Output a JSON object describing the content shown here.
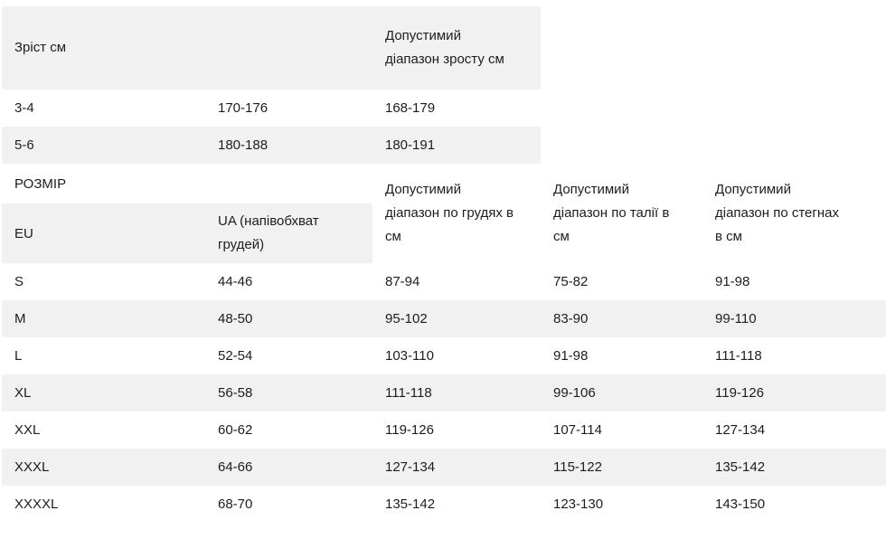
{
  "theme": {
    "stripe_color": "#f1f1f1",
    "text_color": "#1d1d1f",
    "background_color": "#ffffff"
  },
  "height_table": {
    "headers": [
      "Зріст см",
      "",
      "Допустимий діапазон зросту см"
    ],
    "rows": [
      [
        "3-4",
        "170-176",
        "168-179"
      ],
      [
        "5-6",
        "180-188",
        "180-191"
      ]
    ]
  },
  "size_table": {
    "section_label": "РОЗМІР",
    "headers": [
      "EU",
      "UA (напівобхват грудей)",
      "Допустимий діапазон по грудях в см",
      "Допустимий діапазон по талії в см",
      "Допустимий діапазон по стегнах в см"
    ],
    "rows": [
      [
        "S",
        "44-46",
        "87-94",
        "75-82",
        "91-98"
      ],
      [
        "M",
        "48-50",
        "95-102",
        "83-90",
        "99-110"
      ],
      [
        "L",
        "52-54",
        "103-110",
        "91-98",
        "111-118"
      ],
      [
        "XL",
        "56-58",
        "111-118",
        "99-106",
        "119-126"
      ],
      [
        "XXL",
        "60-62",
        "119-126",
        "107-114",
        "127-134"
      ],
      [
        "XXXL",
        "64-66",
        "127-134",
        "115-122",
        "135-142"
      ],
      [
        "XXXXL",
        "68-70",
        "135-142",
        "123-130",
        "143-150"
      ]
    ]
  }
}
